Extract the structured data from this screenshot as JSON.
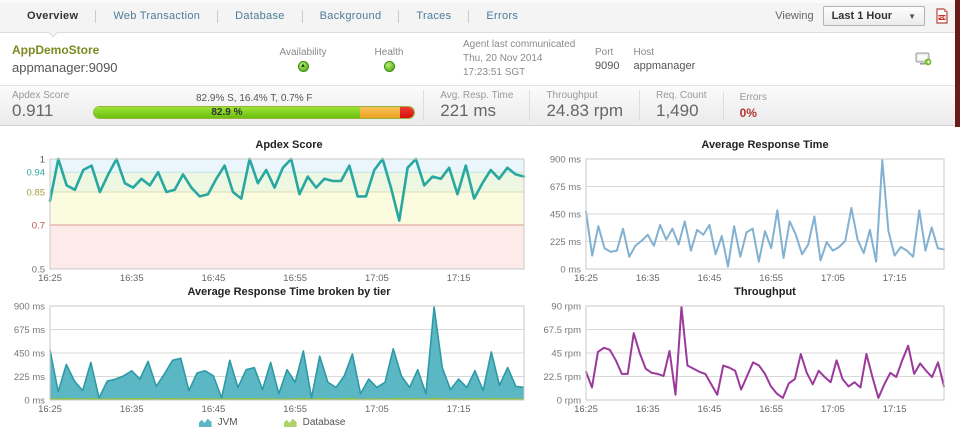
{
  "nav": {
    "viewing_label": "Viewing",
    "time_range": "Last 1 Hour",
    "tabs": [
      {
        "label": "Overview",
        "active": true
      },
      {
        "label": "Web Transaction",
        "active": false
      },
      {
        "label": "Database",
        "active": false
      },
      {
        "label": "Background",
        "active": false
      },
      {
        "label": "Traces",
        "active": false
      },
      {
        "label": "Errors",
        "active": false
      }
    ]
  },
  "header": {
    "app_name": "AppDemoStore",
    "app_host": "appmanager:9090",
    "availability_label": "Availability",
    "health_label": "Health",
    "agent_label": "Agent last communicated",
    "agent_date": "Thu, 20 Nov 2014",
    "agent_time": "17:23:51 SGT",
    "port_label": "Port",
    "port_value": "9090",
    "host_label": "Host",
    "host_value": "appmanager"
  },
  "metrics": {
    "apdex_label": "Apdex Score",
    "apdex_value": "0.911",
    "bar_caption": "82.9% S, 16.4% T, 0.7% F",
    "bar_green_label": "82.9 %",
    "bar_green_pct": 82.9,
    "bar_orange_pct": 16.4,
    "bar_red_pct": 0.7,
    "avg_resp_label": "Avg. Resp. Time",
    "avg_resp_value": "221 ms",
    "throughput_label": "Throughput",
    "throughput_value": "24.83 rpm",
    "req_count_label": "Req. Count",
    "req_count_value": "1,490",
    "errors_label": "Errors",
    "errors_value": "0%"
  },
  "chart_data": [
    {
      "id": "apdex",
      "type": "line",
      "title": "Apdex Score",
      "line_color": "#29a7a1",
      "ylim": [
        0.5,
        1.0
      ],
      "yticks": [
        {
          "value": 1,
          "label": "1",
          "color": "#555555",
          "line": "#c9c9c9"
        },
        {
          "value": 0.94,
          "label": "0.94",
          "color": "#2fa89f",
          "line": "#c2e4e1"
        },
        {
          "value": 0.85,
          "label": "0.85",
          "color": "#a3a33a",
          "line": "#ddddb0"
        },
        {
          "value": 0.7,
          "label": "0.7",
          "color": "#c0504d",
          "line": "#dd9a94"
        },
        {
          "value": 0.5,
          "label": "0.5",
          "color": "#777777",
          "line": "#c9c9c9"
        }
      ],
      "bands": [
        {
          "from": 0.94,
          "to": 1.0,
          "color": "#eaf6fb"
        },
        {
          "from": 0.85,
          "to": 0.94,
          "color": "#edf7e2"
        },
        {
          "from": 0.7,
          "to": 0.85,
          "color": "#fbfbe0"
        },
        {
          "from": 0.5,
          "to": 0.7,
          "color": "#fcebe9"
        }
      ],
      "xlabels": [
        "16:25",
        "16:35",
        "16:45",
        "16:55",
        "17:05",
        "17:15"
      ],
      "values": [
        0.81,
        1.0,
        0.88,
        0.86,
        0.95,
        0.97,
        0.85,
        0.93,
        1.0,
        0.89,
        0.87,
        0.91,
        0.88,
        0.94,
        0.85,
        0.86,
        0.93,
        0.87,
        0.83,
        0.84,
        0.91,
        0.97,
        0.85,
        0.82,
        1.0,
        0.89,
        0.95,
        0.87,
        0.96,
        1.0,
        0.84,
        0.92,
        0.87,
        0.91,
        0.9,
        0.9,
        0.97,
        0.83,
        0.83,
        0.95,
        1.0,
        0.87,
        0.72,
        0.96,
        1.0,
        0.88,
        0.92,
        0.91,
        0.96,
        0.84,
        0.97,
        0.82,
        0.89,
        0.95,
        0.91,
        0.96,
        0.93,
        0.92
      ]
    },
    {
      "id": "avg-response-time",
      "type": "line",
      "title": "Average Response Time",
      "line_color": "#82b1d2",
      "ylim": [
        0,
        900
      ],
      "yticks": [
        {
          "value": 900,
          "label": "900 ms"
        },
        {
          "value": 675,
          "label": "675 ms"
        },
        {
          "value": 450,
          "label": "450 ms"
        },
        {
          "value": 225,
          "label": "225 ms"
        },
        {
          "value": 0,
          "label": "0 ms"
        }
      ],
      "xlabels": [
        "16:25",
        "16:35",
        "16:45",
        "16:55",
        "17:05",
        "17:15"
      ],
      "values": [
        470,
        110,
        350,
        170,
        140,
        150,
        330,
        100,
        190,
        230,
        280,
        190,
        360,
        240,
        330,
        200,
        390,
        150,
        320,
        280,
        360,
        120,
        270,
        20,
        350,
        100,
        300,
        330,
        60,
        310,
        170,
        480,
        90,
        390,
        280,
        120,
        200,
        430,
        70,
        220,
        150,
        180,
        230,
        500,
        240,
        130,
        320,
        60,
        890,
        310,
        110,
        180,
        150,
        100,
        480,
        150,
        340,
        170,
        160
      ]
    },
    {
      "id": "response-time-by-tier",
      "type": "area",
      "title": "Average Response Time broken by tier",
      "ylim": [
        0,
        900
      ],
      "yticks": [
        {
          "value": 900,
          "label": "900 ms"
        },
        {
          "value": 675,
          "label": "675 ms"
        },
        {
          "value": 450,
          "label": "450 ms"
        },
        {
          "value": 225,
          "label": "225 ms"
        },
        {
          "value": 0,
          "label": "0 ms"
        }
      ],
      "xlabels": [
        "16:25",
        "16:35",
        "16:45",
        "16:55",
        "17:05",
        "17:15"
      ],
      "series": [
        {
          "name": "JVM",
          "type": "area",
          "color": "#2d9aa6",
          "fill": "#5ab7c3",
          "values": [
            480,
            80,
            340,
            180,
            90,
            360,
            20,
            180,
            200,
            230,
            280,
            200,
            370,
            130,
            250,
            380,
            400,
            90,
            260,
            280,
            230,
            20,
            380,
            120,
            290,
            310,
            100,
            360,
            60,
            290,
            170,
            470,
            20,
            420,
            170,
            120,
            230,
            440,
            60,
            200,
            120,
            170,
            490,
            230,
            120,
            290,
            60,
            890,
            310,
            100,
            200,
            120,
            280,
            90,
            460,
            140,
            310,
            130,
            120
          ]
        },
        {
          "name": "Database",
          "type": "area",
          "color": "#8fbf3c",
          "fill": "#abd36a",
          "values": [
            10,
            8,
            12,
            9,
            7,
            11,
            6,
            9,
            10,
            8,
            12,
            9,
            11,
            7,
            10,
            12,
            9,
            8,
            11,
            10,
            9,
            7,
            12,
            8,
            10,
            11,
            7,
            10,
            6,
            9,
            8,
            12,
            7,
            11,
            9,
            8,
            10,
            12,
            6,
            9,
            8,
            7,
            11,
            10,
            8,
            9,
            6,
            14,
            10,
            7,
            9,
            8,
            10,
            7,
            12,
            8,
            10,
            9,
            8
          ]
        }
      ]
    },
    {
      "id": "throughput",
      "type": "line",
      "title": "Throughput",
      "line_color": "#9c3a9c",
      "ylim": [
        0,
        90
      ],
      "yticks": [
        {
          "value": 90,
          "label": "90 rpm"
        },
        {
          "value": 67.5,
          "label": "67.5 rpm"
        },
        {
          "value": 45,
          "label": "45 rpm"
        },
        {
          "value": 22.5,
          "label": "22.5 rpm"
        },
        {
          "value": 0,
          "label": "0 rpm"
        }
      ],
      "xlabels": [
        "16:25",
        "16:35",
        "16:45",
        "16:55",
        "17:05",
        "17:15"
      ],
      "values": [
        27,
        12,
        46,
        50,
        48,
        38,
        25,
        25,
        64,
        45,
        30,
        26,
        25,
        23,
        47,
        5,
        89,
        33,
        30,
        27,
        25,
        15,
        5,
        33,
        31,
        28,
        10,
        23,
        36,
        33,
        25,
        13,
        6,
        2,
        16,
        20,
        44,
        26,
        15,
        28,
        22,
        17,
        38,
        20,
        13,
        17,
        12,
        44,
        22,
        2,
        15,
        26,
        22,
        38,
        52,
        25,
        35,
        28,
        22,
        36,
        13
      ]
    }
  ]
}
